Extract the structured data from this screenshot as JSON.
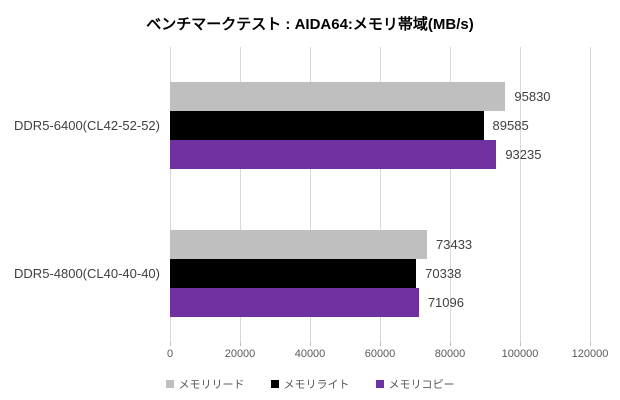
{
  "title": "ベンチマークテスト : AIDA64:メモリ帯域(MB/s)",
  "chart_data": {
    "type": "bar",
    "orientation": "horizontal",
    "title": "ベンチマークテスト : AIDA64:メモリ帯域(MB/s)",
    "categories": [
      "DDR5-6400(CL42-52-52)",
      "DDR5-4800(CL40-40-40)"
    ],
    "series": [
      {
        "name": "メモリリード",
        "color": "#bfbfbf",
        "values": [
          95830,
          73433
        ]
      },
      {
        "name": "メモリライト",
        "color": "#000000",
        "values": [
          89585,
          70338
        ]
      },
      {
        "name": "メモリコピー",
        "color": "#7030a0",
        "values": [
          93235,
          71096
        ]
      }
    ],
    "xlabel": "",
    "ylabel": "",
    "xlim": [
      0,
      120000
    ],
    "xticks": [
      0,
      20000,
      40000,
      60000,
      80000,
      100000,
      120000
    ],
    "grid": true,
    "legend_position": "bottom",
    "value_labels": true
  },
  "colors": {
    "background": "#ffffff",
    "gridline": "#d9d9d9",
    "title_text": "#000000",
    "category_text": "#404040",
    "value_text": "#404040",
    "tick_text": "#595959",
    "legend_text": "#595959"
  }
}
